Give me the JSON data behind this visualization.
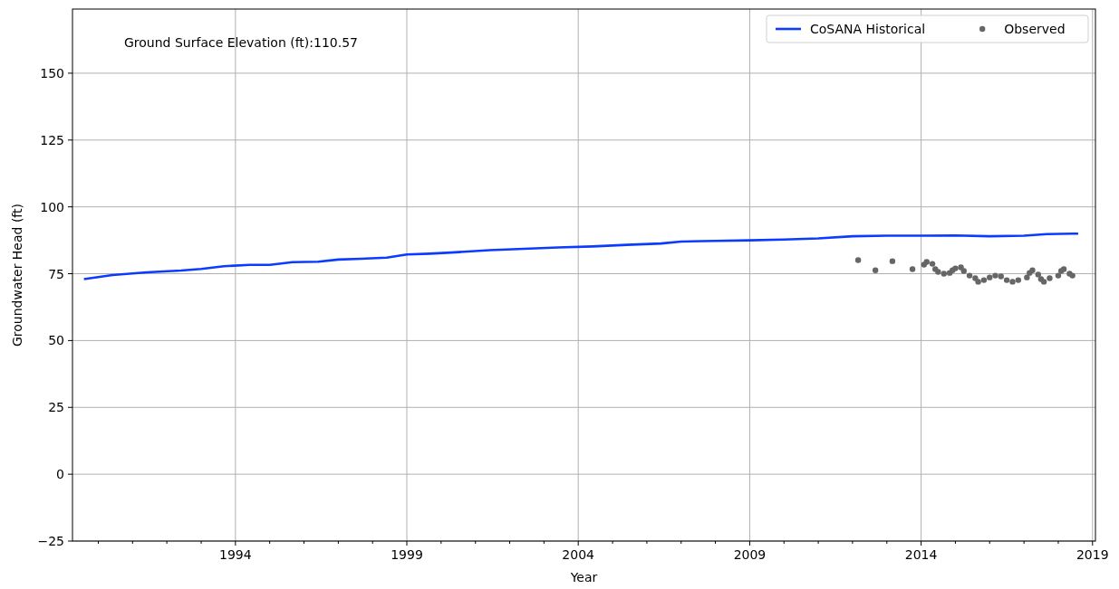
{
  "chart_data": {
    "type": "line",
    "xlabel": "Year",
    "ylabel": "Groundwater Head (ft)",
    "annotations": [
      "Ground Surface Elevation (ft):110.57"
    ],
    "xlim": [
      "1989-04",
      "2019-02"
    ],
    "xticks": [
      {
        "value": "1990",
        "label": null
      },
      {
        "value": "1991",
        "label": null
      },
      {
        "value": "1992",
        "label": null
      },
      {
        "value": "1993",
        "label": null
      },
      "1994",
      {
        "value": "1995",
        "label": null
      },
      {
        "value": "1996",
        "label": null
      },
      {
        "value": "1997",
        "label": null
      },
      {
        "value": "1998",
        "label": null
      },
      "1999",
      {
        "value": "2000",
        "label": null
      },
      {
        "value": "2001",
        "label": null
      },
      {
        "value": "2002",
        "label": null
      },
      {
        "value": "2003",
        "label": null
      },
      "2004",
      {
        "value": "2005",
        "label": null
      },
      {
        "value": "2006",
        "label": null
      },
      {
        "value": "2007",
        "label": null
      },
      {
        "value": "2008",
        "label": null
      },
      "2009",
      {
        "value": "2010",
        "label": null
      },
      {
        "value": "2011",
        "label": null
      },
      {
        "value": "2012",
        "label": null
      },
      {
        "value": "2013",
        "label": null
      },
      "2014",
      {
        "value": "2015",
        "label": null
      },
      {
        "value": "2016",
        "label": null
      },
      {
        "value": "2017",
        "label": null
      },
      {
        "value": "2018",
        "label": null
      },
      "2019"
    ],
    "ylim": [
      -25,
      174
    ],
    "yticks": [
      {
        "value": -25,
        "label": "−25"
      },
      0,
      25,
      50,
      75,
      100,
      125,
      150
    ],
    "grid": true,
    "legend": "top right",
    "series": [
      {
        "name": "CoSANA Historical",
        "color": "#0b3bff",
        "marker": "none",
        "line_style": "solid",
        "x": [
          "1989-08",
          "1990-06",
          "1991-06",
          "1992-06",
          "1993-01",
          "1993-09",
          "1994-06",
          "1995-01",
          "1995-09",
          "1996-06",
          "1997-01",
          "1997-09",
          "1998-06",
          "1999-01",
          "1999-09",
          "2000-06",
          "2001-06",
          "2002-06",
          "2003-06",
          "2004-06",
          "2005-06",
          "2006-06",
          "2007-01",
          "2008-01",
          "2009-01",
          "2010-01",
          "2011-01",
          "2012-01",
          "2013-01",
          "2014-01",
          "2015-01",
          "2016-01",
          "2017-01",
          "2017-09",
          "2018-06",
          "2018-08"
        ],
        "values": [
          73,
          74.5,
          75.5,
          76.2,
          76.8,
          77.8,
          78.3,
          78.3,
          79.3,
          79.5,
          80.3,
          80.6,
          81,
          82.2,
          82.5,
          83,
          83.8,
          84.3,
          84.8,
          85.2,
          85.8,
          86.3,
          87,
          87.3,
          87.5,
          87.8,
          88.2,
          89,
          89.2,
          89.2,
          89.3,
          89,
          89.2,
          89.8,
          90,
          90
        ]
      },
      {
        "name": "Observed",
        "type": "scatter",
        "color": "#666666",
        "marker": "circle",
        "x": [
          "2012-03",
          "2012-09",
          "2013-03",
          "2013-10",
          "2014-02",
          "2014-03",
          "2014-05",
          "2014-06",
          "2014-07",
          "2014-09",
          "2014-11",
          "2014-12",
          "2015-01",
          "2015-03",
          "2015-04",
          "2015-06",
          "2015-08",
          "2015-09",
          "2015-11",
          "2016-01",
          "2016-03",
          "2016-05",
          "2016-07",
          "2016-09",
          "2016-11",
          "2017-02",
          "2017-03",
          "2017-04",
          "2017-06",
          "2017-07",
          "2017-08",
          "2017-10",
          "2018-01",
          "2018-02",
          "2018-03",
          "2018-05",
          "2018-06"
        ],
        "values": [
          80.1,
          76.3,
          79.7,
          76.7,
          78.4,
          79.4,
          78.7,
          76.7,
          75.7,
          75,
          75.3,
          76.3,
          77,
          77.4,
          76,
          74.3,
          73.3,
          72,
          72.6,
          73.6,
          74.3,
          74,
          72.6,
          72,
          72.6,
          73.6,
          75.3,
          76.3,
          74.7,
          73,
          72,
          73.3,
          74.3,
          76,
          76.7,
          75,
          74.3
        ]
      }
    ]
  }
}
